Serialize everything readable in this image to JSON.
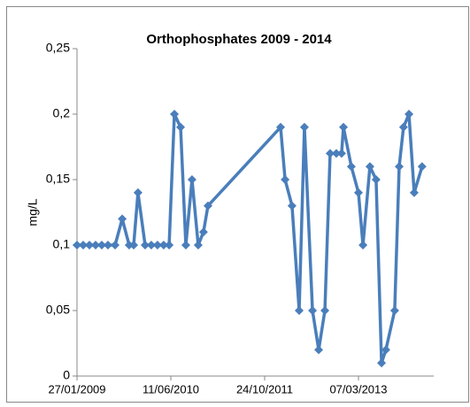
{
  "chart_data": {
    "type": "line",
    "title": "Orthophosphates 2009 - 2014",
    "y_label": "mg/L",
    "x": [
      "27/01/2009",
      "01/03/2009",
      "03/04/2009",
      "06/05/2009",
      "08/06/2009",
      "11/07/2009",
      "18/08/2009",
      "25/09/2009",
      "01/11/2009",
      "25/11/2009",
      "18/12/2009",
      "25/01/2010",
      "27/02/2010",
      "01/04/2010",
      "04/05/2010",
      "02/06/2010",
      "30/06/2010",
      "02/08/2010",
      "30/08/2010",
      "02/10/2010",
      "04/11/2010",
      "02/12/2010",
      "26/12/2010",
      "17/01/2012",
      "10/02/2012",
      "18/03/2012",
      "25/04/2012",
      "23/05/2012",
      "05/07/2012",
      "07/08/2012",
      "09/09/2012",
      "07/10/2012",
      "09/11/2012",
      "07/12/2012",
      "17/12/2012",
      "28/01/2013",
      "07/03/2013",
      "31/03/2013",
      "07/05/2013",
      "09/06/2013",
      "08/07/2013",
      "31/07/2013",
      "16/09/2013",
      "10/10/2013",
      "02/11/2013",
      "01/12/2013",
      "29/12/2013",
      "09/02/2014"
    ],
    "series": [
      {
        "name": "Orthophosphates",
        "color": "#4a7ebb",
        "values": [
          0.1,
          0.1,
          0.1,
          0.1,
          0.1,
          0.1,
          0.1,
          0.12,
          0.1,
          0.1,
          0.14,
          0.1,
          0.1,
          0.1,
          0.1,
          0.1,
          0.2,
          0.19,
          0.1,
          0.15,
          0.1,
          0.11,
          0.13,
          0.19,
          0.15,
          0.13,
          0.05,
          0.19,
          0.05,
          0.02,
          0.05,
          0.17,
          0.17,
          0.17,
          0.19,
          0.16,
          0.14,
          0.1,
          0.16,
          0.15,
          0.01,
          0.02,
          0.05,
          0.16,
          0.19,
          0.2,
          0.14,
          0.16
        ]
      }
    ],
    "xlim": [
      "27/01/2009",
      "12/04/2014"
    ],
    "xticks": [
      "27/01/2009",
      "11/06/2010",
      "24/10/2011",
      "07/03/2013"
    ],
    "ylim": [
      0,
      0.25
    ],
    "yticks": [
      0,
      {
        "value": 0.05,
        "label": "0,05"
      },
      {
        "value": 0.1,
        "label": "0,1"
      },
      {
        "value": 0.15,
        "label": "0,15"
      },
      {
        "value": 0.2,
        "label": "0,2"
      },
      {
        "value": 0.25,
        "label": "0,25"
      }
    ]
  }
}
